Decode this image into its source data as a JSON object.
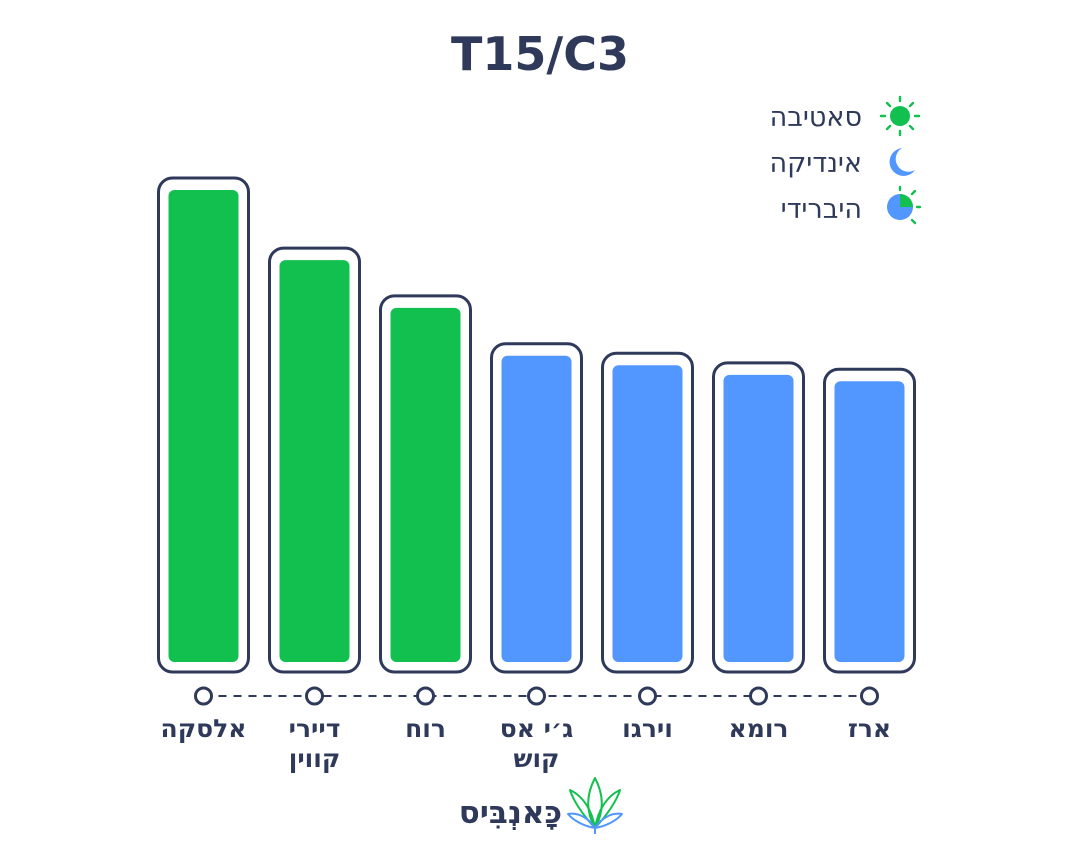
{
  "chart_data": {
    "type": "bar",
    "title": "T15/C3",
    "categories": [
      "אלסקה",
      "דיירי קווין",
      "רוח",
      "ג׳י אס קוש",
      "וירגו",
      "רומא",
      "ארז"
    ],
    "values": [
      15.5,
      13.3,
      11.8,
      10.3,
      10.0,
      9.7,
      9.5
    ],
    "types": [
      "sativa",
      "sativa",
      "sativa",
      "indica",
      "indica",
      "indica",
      "indica"
    ],
    "ylim": [
      0,
      16
    ],
    "grid": false,
    "legend_position": "top-right",
    "legend": [
      {
        "key": "sativa",
        "label": "סאטיבה",
        "icon": "sun-icon"
      },
      {
        "key": "indica",
        "label": "אינדיקה",
        "icon": "moon-icon"
      },
      {
        "key": "hybrid",
        "label": "היברידי",
        "icon": "half-sun-moon-icon"
      }
    ]
  },
  "colors": {
    "sativa": "#12c04f",
    "indica": "#5296ff",
    "outline": "#2f3a5a",
    "text": "#2f3a5a"
  },
  "brand": {
    "name": "כָּאנְבִּיס",
    "icon": "cannabis-leaf-icon"
  }
}
